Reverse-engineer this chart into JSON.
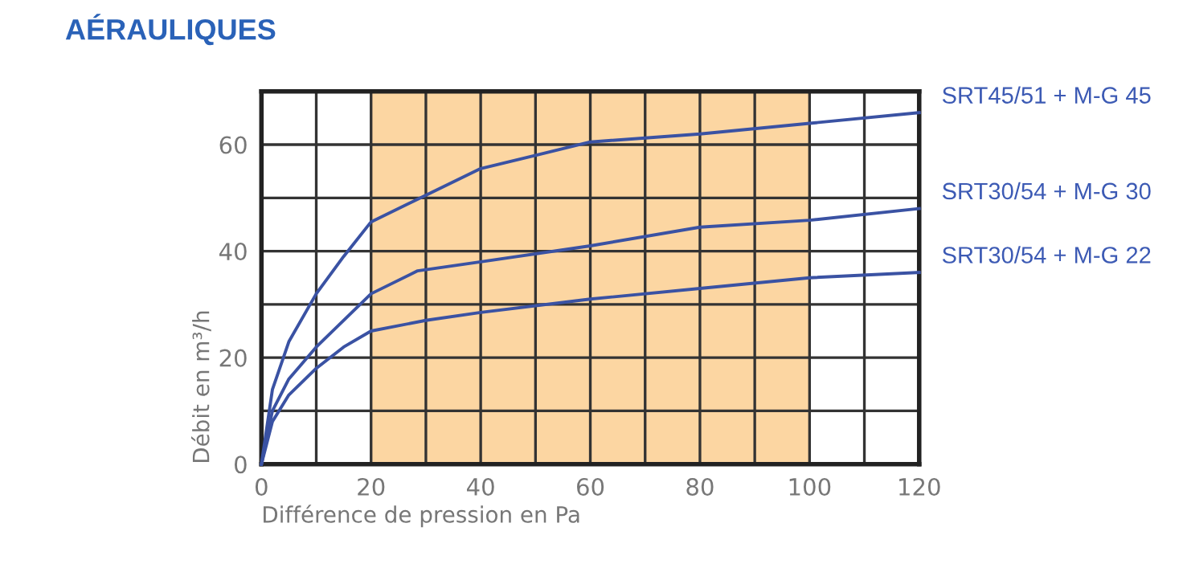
{
  "chart_data": {
    "type": "line",
    "title": "AÉRAULIQUES",
    "xlabel": "Différence de pression en Pa",
    "ylabel": "Débit en m³/h",
    "xlim": [
      0,
      120
    ],
    "ylim": [
      0,
      70
    ],
    "xticks": [
      0,
      {
        "value": 10,
        "label": null
      },
      20,
      {
        "value": 30,
        "label": null
      },
      40,
      {
        "value": 50,
        "label": null
      },
      60,
      {
        "value": 70,
        "label": null
      },
      80,
      {
        "value": 90,
        "label": null
      },
      100,
      {
        "value": 110,
        "label": null
      },
      120
    ],
    "yticks": [
      0,
      {
        "value": 10,
        "label": null
      },
      20,
      {
        "value": 30,
        "label": null
      },
      40,
      {
        "value": 50,
        "label": null
      },
      60,
      {
        "value": 70,
        "label": null
      }
    ],
    "grid": true,
    "marker": "none",
    "line_style": "solid",
    "legend": false,
    "bands": [
      {
        "axis": "x",
        "from": 20,
        "to": 100,
        "color": "#fcd6a2"
      }
    ],
    "series": [
      {
        "name": "SRT45/51 + M-G 45",
        "color": "#3a52a3",
        "x": [
          0,
          2,
          5,
          10,
          15,
          20,
          30,
          40,
          50,
          60,
          80,
          100,
          120
        ],
        "values": [
          0,
          14,
          23,
          32,
          39,
          45.5,
          50.5,
          55.5,
          58,
          60.5,
          62,
          64,
          66
        ]
      },
      {
        "name": "SRT30/54 + M-G 30",
        "color": "#3a52a3",
        "x": [
          0,
          2,
          5,
          10,
          20,
          28.5,
          40,
          60,
          80,
          100,
          120
        ],
        "values": [
          0,
          10,
          16,
          22,
          32,
          36.3,
          38,
          41,
          44.5,
          45.8,
          48
        ]
      },
      {
        "name": "SRT30/54 + M-G 22",
        "color": "#3a52a3",
        "x": [
          0,
          2,
          5,
          10,
          15,
          20,
          30,
          40,
          60,
          80,
          100,
          120
        ],
        "values": [
          0,
          8,
          13,
          18,
          22,
          25,
          27,
          28.5,
          31,
          33,
          35,
          36
        ]
      }
    ]
  }
}
